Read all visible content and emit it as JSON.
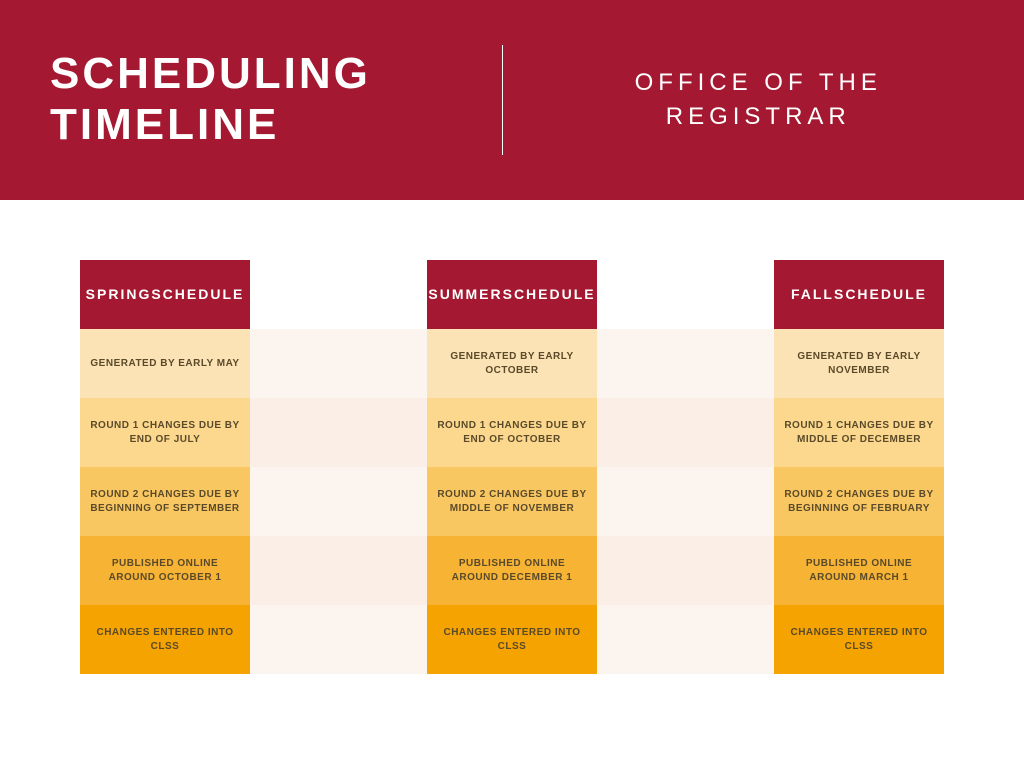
{
  "header": {
    "title_line1": "SCHEDULING",
    "title_line2": "TIMELINE",
    "subtitle_line1": "OFFICE OF THE",
    "subtitle_line2": "REGISTRAR",
    "bg_color": "#a41931",
    "text_color": "#ffffff"
  },
  "layout": {
    "col_header_bg": "#a41931",
    "row_colors": [
      "#fce3b5",
      "#fbd88e",
      "#f9c762",
      "#f6b334",
      "#f4a300"
    ],
    "stripe_colors": [
      "#fcf4ee",
      "#faeee6",
      "#fcf4ee",
      "#faeee6",
      "#fcf4ee"
    ],
    "cell_text_color": "#5a4a2a"
  },
  "columns": [
    {
      "header_line1": "SPRING",
      "header_line2": "SCHEDULE",
      "rows": [
        "GENERATED BY EARLY MAY",
        "ROUND 1 CHANGES DUE BY END OF JULY",
        "ROUND 2 CHANGES DUE BY BEGINNING OF SEPTEMBER",
        "PUBLISHED ONLINE AROUND OCTOBER 1",
        "CHANGES ENTERED INTO CLSS"
      ]
    },
    {
      "header_line1": "SUMMER",
      "header_line2": "SCHEDULE",
      "rows": [
        "GENERATED BY EARLY OCTOBER",
        "ROUND 1 CHANGES DUE BY END OF OCTOBER",
        "ROUND 2 CHANGES DUE BY MIDDLE OF NOVEMBER",
        "PUBLISHED ONLINE AROUND DECEMBER 1",
        "CHANGES ENTERED INTO CLSS"
      ]
    },
    {
      "header_line1": "FALL",
      "header_line2": "SCHEDULE",
      "rows": [
        "GENERATED BY EARLY NOVEMBER",
        "ROUND 1 CHANGES DUE BY MIDDLE OF DECEMBER",
        "ROUND 2 CHANGES DUE BY BEGINNING OF FEBRUARY",
        "PUBLISHED ONLINE AROUND MARCH 1",
        "CHANGES ENTERED INTO CLSS"
      ]
    }
  ]
}
